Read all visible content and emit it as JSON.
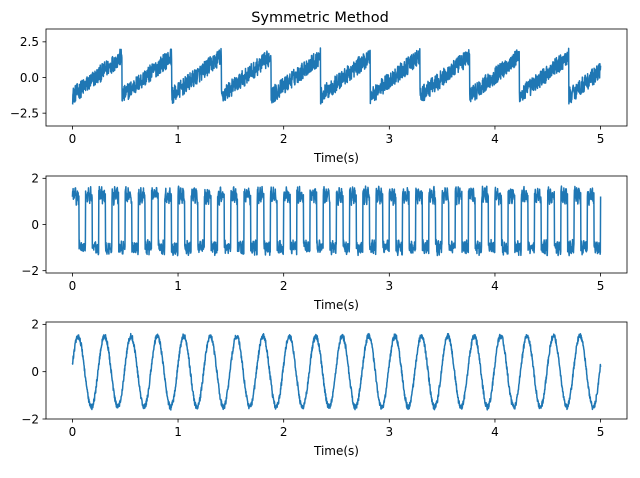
{
  "figure": {
    "title": "Symmetric Method"
  },
  "chart_data": [
    {
      "type": "line",
      "title": "Symmetric Method",
      "xlabel": "Time(s)",
      "ylabel": "",
      "xlim": [
        -0.25,
        5.25
      ],
      "ylim": [
        -3.4,
        3.4
      ],
      "xticks": [
        0,
        1,
        2,
        3,
        4,
        5
      ],
      "xtick_labels": [
        "0",
        "1",
        "2",
        "3",
        "4",
        "5"
      ],
      "yticks": [
        -2.5,
        0.0,
        2.5
      ],
      "ytick_labels": [
        "−2.5",
        "0.0",
        "2.5"
      ],
      "grid": false,
      "series": [
        {
          "color": "#1f77b4",
          "waveform": "sawtooth",
          "t_start": 0,
          "t_end": 5,
          "period_s": 0.47,
          "min": -1.3,
          "max": 1.5,
          "noise_amplitude": 0.6
        }
      ]
    },
    {
      "type": "line",
      "title": "",
      "xlabel": "Time(s)",
      "ylabel": "",
      "xlim": [
        -0.25,
        5.25
      ],
      "ylim": [
        -2.1,
        2.1
      ],
      "xticks": [
        0,
        1,
        2,
        3,
        4,
        5
      ],
      "xtick_labels": [
        "0",
        "1",
        "2",
        "3",
        "4",
        "5"
      ],
      "yticks": [
        -2,
        0,
        2
      ],
      "ytick_labels": [
        "−2",
        "0",
        "2"
      ],
      "grid": false,
      "series": [
        {
          "color": "#1f77b4",
          "waveform": "square",
          "t_start": 0,
          "t_end": 5,
          "period_s": 0.125,
          "high": 1.25,
          "low": -1.0,
          "noise_amplitude": 0.25
        }
      ]
    },
    {
      "type": "line",
      "title": "",
      "xlabel": "Time(s)",
      "ylabel": "",
      "xlim": [
        -0.25,
        5.25
      ],
      "ylim": [
        -2.0,
        2.1
      ],
      "xticks": [
        0,
        1,
        2,
        3,
        4,
        5
      ],
      "xtick_labels": [
        "0",
        "1",
        "2",
        "3",
        "4",
        "5"
      ],
      "yticks": [
        -2,
        0,
        2
      ],
      "ytick_labels": [
        "−2",
        "0",
        "2"
      ],
      "grid": false,
      "series": [
        {
          "color": "#1f77b4",
          "waveform": "sine",
          "t_start": 0,
          "t_end": 5,
          "frequency_hz": 4,
          "amplitude": 1.5,
          "phase_offset_s": 0.2,
          "noise_amplitude": 0.12
        }
      ]
    }
  ]
}
